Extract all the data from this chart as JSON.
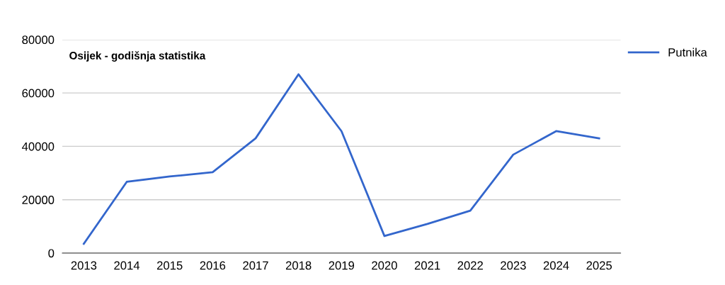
{
  "chart_data": {
    "type": "line",
    "title": "Osijek - godišnja statistika",
    "categories": [
      "2013",
      "2014",
      "2015",
      "2016",
      "2017",
      "2018",
      "2019",
      "2020",
      "2021",
      "2022",
      "2023",
      "2024",
      "2025"
    ],
    "series": [
      {
        "name": "Putnika",
        "color": "#3366cc",
        "values": [
          3500,
          26700,
          28700,
          30300,
          43000,
          67000,
          45700,
          6400,
          10900,
          15900,
          36900,
          45700,
          43000
        ]
      }
    ],
    "ylim": [
      0,
      80000
    ],
    "yticks": [
      0,
      20000,
      40000,
      60000,
      80000
    ],
    "grid": "y",
    "legend": "top right",
    "marker": "none",
    "line_style": "solid"
  }
}
